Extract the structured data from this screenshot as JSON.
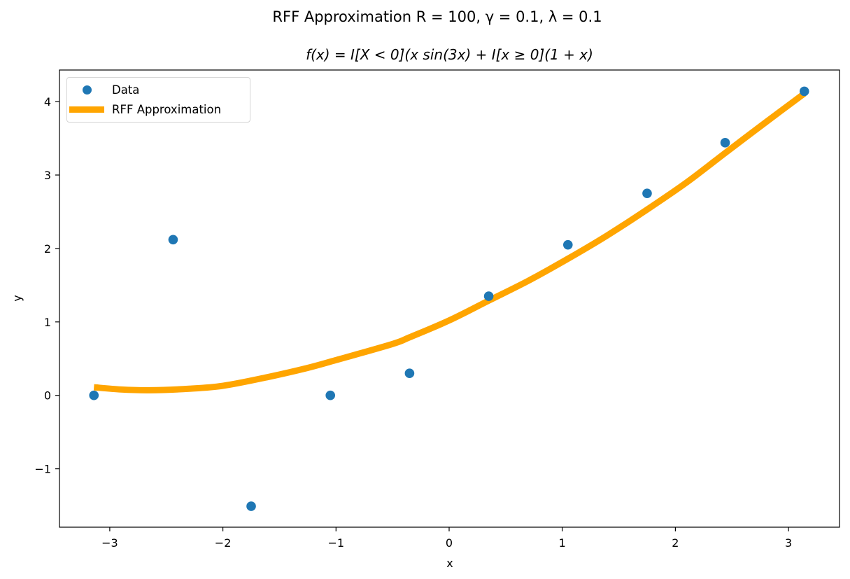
{
  "chart_data": {
    "type": "scatter+line",
    "suptitle": "RFF Approximation R = 100, γ = 0.1, λ = 0.1",
    "title": "f(x) = I[X < 0](x sin(3x) + I[x ≥ 0](1 + x)",
    "xlabel": "x",
    "ylabel": "y",
    "xlim": [
      -3.45,
      3.45
    ],
    "ylim": [
      -1.8,
      4.42
    ],
    "xticks": [
      -3,
      -2,
      -1,
      0,
      1,
      2,
      3
    ],
    "xtick_labels": [
      "−3",
      "−2",
      "−1",
      "0",
      "1",
      "2",
      "3"
    ],
    "yticks": [
      -1,
      0,
      1,
      2,
      3,
      4
    ],
    "ytick_labels": [
      "−1",
      "0",
      "1",
      "2",
      "3",
      "4"
    ],
    "grid": false,
    "legend_position": "upper left",
    "series": [
      {
        "name": "Data",
        "kind": "scatter",
        "color": "#1f77b4",
        "x": [
          -3.14,
          -2.44,
          -1.75,
          -1.05,
          -0.35,
          0.35,
          1.05,
          1.75,
          2.44,
          3.14
        ],
        "y": [
          0.0,
          2.12,
          -1.51,
          0.0,
          0.3,
          1.35,
          2.05,
          2.75,
          3.44,
          4.14
        ]
      },
      {
        "name": "RFF Approximation",
        "kind": "line",
        "color": "#ffa500",
        "x": [
          -3.14,
          -2.9,
          -2.65,
          -2.3,
          -2.0,
          -1.63,
          -1.26,
          -1.0,
          -0.5,
          -0.35,
          0.0,
          0.35,
          0.7,
          1.05,
          1.4,
          1.74,
          2.1,
          2.44,
          2.8,
          3.14
        ],
        "y": [
          0.11,
          0.08,
          0.07,
          0.09,
          0.13,
          0.24,
          0.37,
          0.48,
          0.7,
          0.79,
          1.02,
          1.29,
          1.56,
          1.86,
          2.18,
          2.52,
          2.9,
          3.3,
          3.72,
          4.11
        ]
      }
    ]
  },
  "legend": {
    "items": [
      {
        "label": "Data",
        "color": "#1f77b4"
      },
      {
        "label": "RFF Approximation",
        "color": "#ffa500"
      }
    ]
  }
}
